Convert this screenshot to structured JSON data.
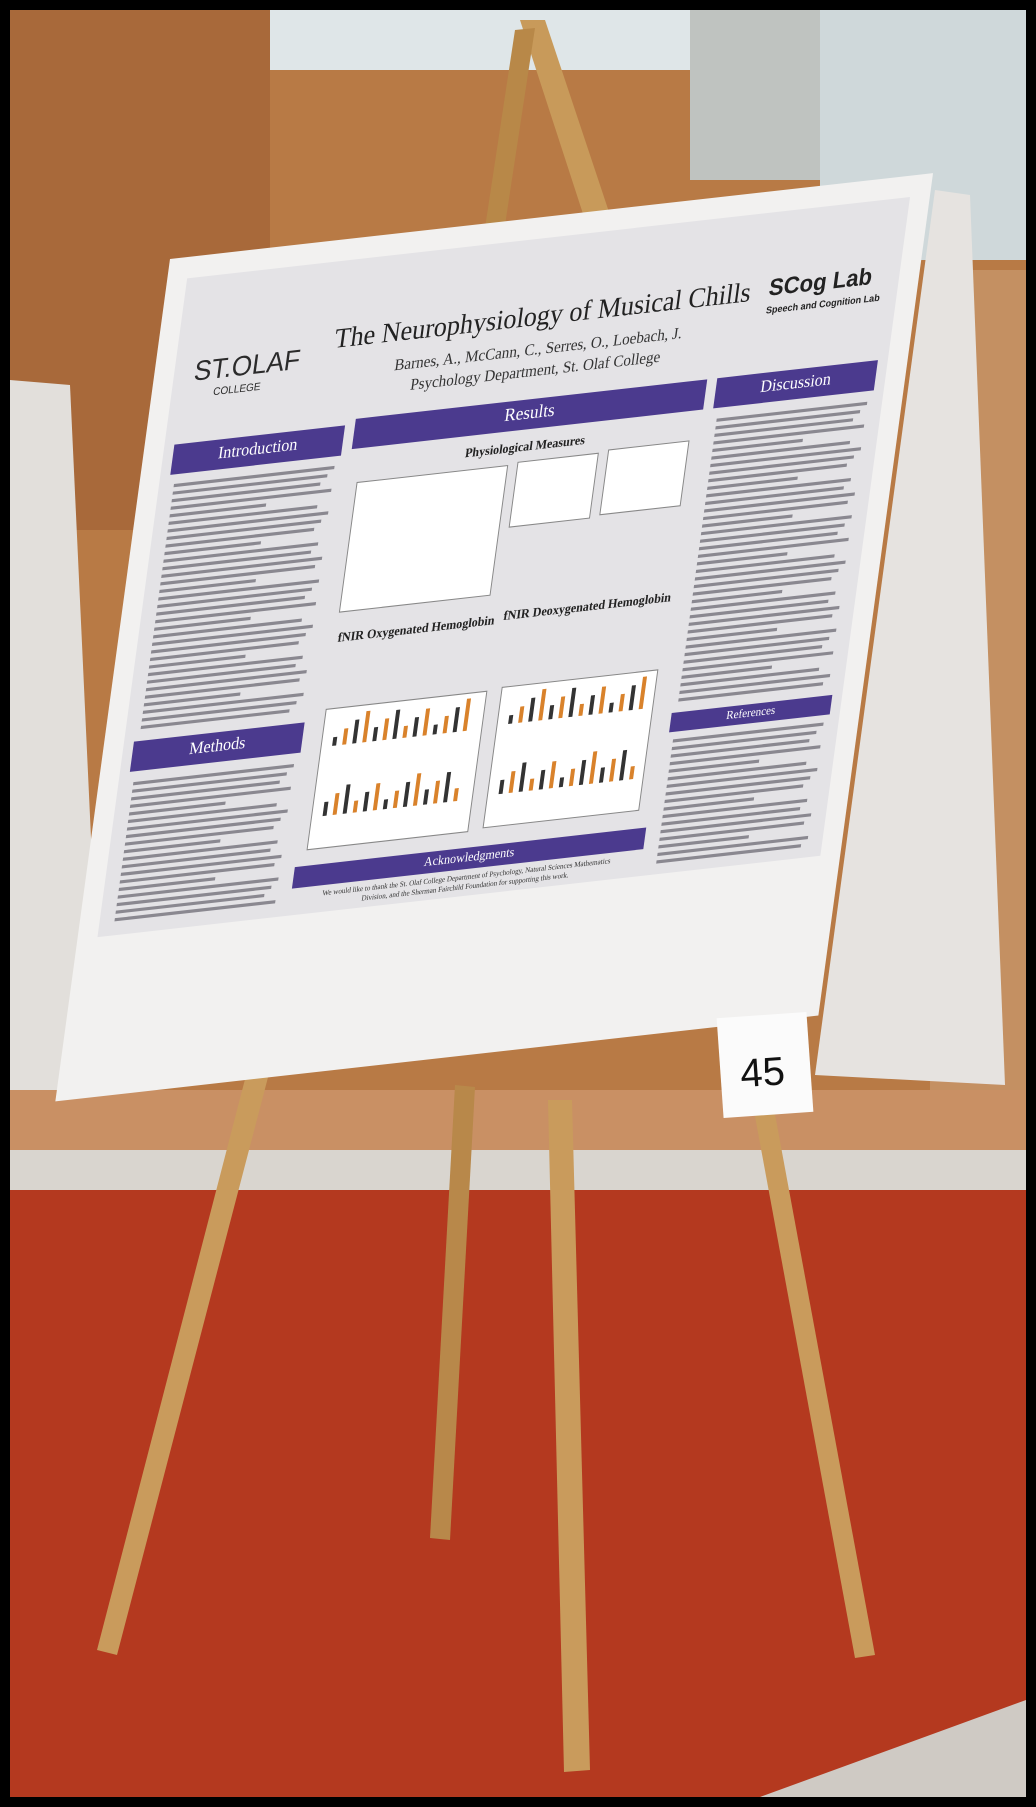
{
  "poster": {
    "logo_left": {
      "name": "ST.OLAF",
      "sub": "COLLEGE"
    },
    "title": "The Neurophysiology of Musical Chills",
    "authors": "Barnes, A., McCann, C., Serres, O., Loebach, J.",
    "affiliation": "Psychology Department, St. Olaf College",
    "logo_right": {
      "name": "SCog Lab",
      "sub": "Speech and Cognition Lab"
    },
    "sections": {
      "introduction": "Introduction",
      "methods": "Methods",
      "results": "Results",
      "physiological": "Physiological Measures",
      "oxygenated": "fNIR Oxygenated Hemoglobin",
      "deoxygenated": "fNIR Deoxygenated Hemoglobin",
      "acknowledgments": "Acknowledgments",
      "acknowledgments_text": [
        "We would like to thank the St. Olaf College Department of Psychology, Natural Sciences Mathematics",
        "Division, and the Sherman Fairchild Foundation for supporting this work."
      ],
      "discussion": "Discussion",
      "references": "References"
    },
    "number": "45"
  }
}
